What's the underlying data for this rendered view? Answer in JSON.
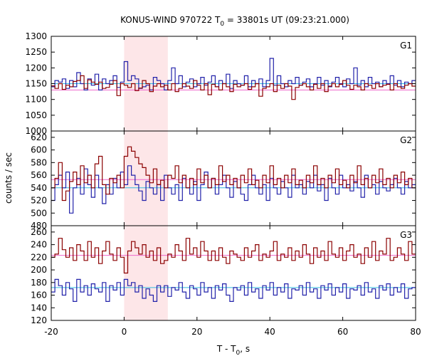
{
  "chart_data": {
    "type": "line",
    "title_main": "KONUS-WIND 970722 T",
    "title_sub": "0",
    "title_rest": " = 33801s UT (09:23:21.000)",
    "xlabel_main": "T - T",
    "xlabel_sub": "0",
    "xlabel_rest": ", s",
    "ylabel": "counts / sec",
    "xlim": [
      -20,
      80
    ],
    "xticks": [
      "-20",
      "0",
      "20",
      "40",
      "60",
      "80"
    ],
    "highlight_interval": [
      0,
      12
    ],
    "colors": {
      "series_a": "#8b0000",
      "series_b": "#2222aa",
      "fit_a": "#ee66cc",
      "fit_b": "#33bbdd",
      "highlight": "#fde6e8"
    },
    "panels": [
      {
        "label": "G1",
        "ylim": [
          1000,
          1300
        ],
        "yticks": [
          "1000",
          "1050",
          "1100",
          "1150",
          "1200",
          "1250",
          "1300"
        ],
        "bg_a": 1130,
        "bg_b": 1150,
        "series_a": [
          1143,
          1135,
          1150,
          1132,
          1145,
          1140,
          1157,
          1160,
          1175,
          1135,
          1162,
          1155,
          1148,
          1155,
          1135,
          1138,
          1148,
          1160,
          1112,
          1150,
          1145,
          1138,
          1150,
          1128,
          1136,
          1160,
          1150,
          1125,
          1142,
          1150,
          1140,
          1145,
          1130,
          1150,
          1125,
          1135,
          1150,
          1142,
          1135,
          1160,
          1145,
          1130,
          1150,
          1115,
          1148,
          1140,
          1130,
          1150,
          1140,
          1125,
          1148,
          1140,
          1145,
          1150,
          1132,
          1140,
          1150,
          1110,
          1135,
          1140,
          1150,
          1125,
          1145,
          1135,
          1150,
          1142,
          1100,
          1138,
          1145,
          1150,
          1140,
          1130,
          1148,
          1135,
          1150,
          1125,
          1142,
          1150,
          1140,
          1148,
          1160,
          1145,
          1132,
          1145,
          1140,
          1130,
          1150,
          1145,
          1135,
          1150,
          1140,
          1145,
          1148,
          1130,
          1150,
          1140,
          1135,
          1145,
          1150,
          1142
        ],
        "series_b": [
          1140,
          1160,
          1155,
          1165,
          1135,
          1160,
          1140,
          1185,
          1150,
          1130,
          1165,
          1145,
          1180,
          1130,
          1165,
          1150,
          1160,
          1175,
          1138,
          1155,
          1220,
          1160,
          1175,
          1165,
          1135,
          1140,
          1145,
          1130,
          1170,
          1160,
          1150,
          1130,
          1160,
          1200,
          1150,
          1175,
          1140,
          1155,
          1165,
          1140,
          1150,
          1170,
          1145,
          1155,
          1175,
          1140,
          1160,
          1150,
          1180,
          1135,
          1160,
          1150,
          1145,
          1175,
          1140,
          1160,
          1150,
          1165,
          1140,
          1160,
          1230,
          1145,
          1175,
          1150,
          1140,
          1160,
          1150,
          1170,
          1145,
          1155,
          1165,
          1140,
          1150,
          1170,
          1145,
          1160,
          1140,
          1155,
          1170,
          1150,
          1140,
          1165,
          1150,
          1200,
          1145,
          1160,
          1140,
          1170,
          1150,
          1155,
          1140,
          1160,
          1150,
          1175,
          1145,
          1160,
          1140,
          1155,
          1150,
          1160
        ]
      },
      {
        "label": "G2",
        "ylim": [
          480,
          630
        ],
        "yticks": [
          "480",
          "500",
          "520",
          "540",
          "560",
          "580",
          "600",
          "620"
        ],
        "bg_a": 553,
        "bg_b": 540,
        "series_a": [
          540,
          555,
          580,
          520,
          535,
          550,
          565,
          545,
          575,
          548,
          560,
          540,
          578,
          590,
          545,
          530,
          555,
          548,
          560,
          540,
          590,
          605,
          598,
          588,
          578,
          572,
          560,
          548,
          570,
          545,
          552,
          540,
          560,
          555,
          575,
          548,
          560,
          540,
          555,
          545,
          570,
          548,
          560,
          540,
          555,
          545,
          575,
          550,
          560,
          545,
          555,
          540,
          560,
          548,
          570,
          545,
          552,
          540,
          560,
          548,
          575,
          545,
          555,
          540,
          560,
          548,
          570,
          545,
          552,
          540,
          560,
          548,
          575,
          545,
          555,
          540,
          560,
          548,
          570,
          545,
          552,
          540,
          560,
          548,
          575,
          545,
          555,
          540,
          560,
          548,
          570,
          545,
          555,
          540,
          560,
          548,
          565,
          545,
          555,
          540
        ],
        "series_b": [
          520,
          545,
          560,
          540,
          565,
          500,
          540,
          555,
          530,
          570,
          545,
          525,
          560,
          540,
          515,
          545,
          530,
          555,
          540,
          565,
          545,
          575,
          560,
          545,
          535,
          520,
          550,
          540,
          530,
          545,
          520,
          560,
          540,
          530,
          545,
          520,
          555,
          540,
          530,
          550,
          520,
          545,
          565,
          540,
          555,
          530,
          545,
          560,
          540,
          525,
          550,
          540,
          530,
          520,
          545,
          560,
          540,
          530,
          545,
          520,
          555,
          540,
          530,
          550,
          540,
          525,
          560,
          540,
          545,
          530,
          550,
          540,
          560,
          535,
          545,
          520,
          555,
          540,
          530,
          560,
          540,
          545,
          535,
          550,
          540,
          525,
          560,
          540,
          545,
          530,
          550,
          540,
          535,
          545,
          555,
          540,
          530,
          550,
          540,
          545
        ]
      },
      {
        "label": "G3",
        "ylim": [
          120,
          270
        ],
        "yticks": [
          "120",
          "140",
          "160",
          "180",
          "200",
          "220",
          "240",
          "260"
        ],
        "bg_a": 223,
        "bg_b": 172,
        "series_a": [
          220,
          225,
          250,
          232,
          220,
          235,
          215,
          240,
          230,
          215,
          245,
          220,
          235,
          210,
          230,
          245,
          225,
          215,
          235,
          220,
          195,
          230,
          245,
          235,
          225,
          240,
          220,
          230,
          215,
          235,
          210,
          215,
          225,
          220,
          240,
          230,
          215,
          250,
          225,
          235,
          220,
          245,
          230,
          215,
          230,
          215,
          235,
          220,
          210,
          230,
          225,
          220,
          215,
          235,
          220,
          230,
          240,
          215,
          225,
          220,
          230,
          245,
          215,
          225,
          220,
          235,
          215,
          230,
          220,
          240,
          225,
          210,
          235,
          220,
          230,
          215,
          245,
          225,
          220,
          235,
          215,
          230,
          240,
          220,
          225,
          210,
          235,
          220,
          245,
          215,
          230,
          225,
          250,
          215,
          220,
          235,
          225,
          215,
          245,
          225
        ],
        "series_b": [
          165,
          185,
          175,
          160,
          180,
          170,
          150,
          185,
          165,
          175,
          160,
          178,
          170,
          165,
          180,
          150,
          175,
          168,
          180,
          160,
          185,
          175,
          180,
          165,
          175,
          155,
          170,
          160,
          150,
          175,
          165,
          175,
          158,
          172,
          168,
          180,
          165,
          155,
          175,
          170,
          160,
          180,
          165,
          172,
          155,
          175,
          168,
          178,
          160,
          150,
          172,
          168,
          175,
          160,
          180,
          165,
          170,
          155,
          175,
          168,
          180,
          160,
          172,
          165,
          178,
          155,
          170,
          168,
          175,
          160,
          180,
          165,
          170,
          155,
          175,
          168,
          178,
          160,
          172,
          165,
          178,
          155,
          170,
          168,
          175,
          160,
          180,
          165,
          170,
          155,
          175,
          168,
          178,
          160,
          172,
          165,
          178,
          155,
          170,
          172
        ]
      }
    ]
  }
}
